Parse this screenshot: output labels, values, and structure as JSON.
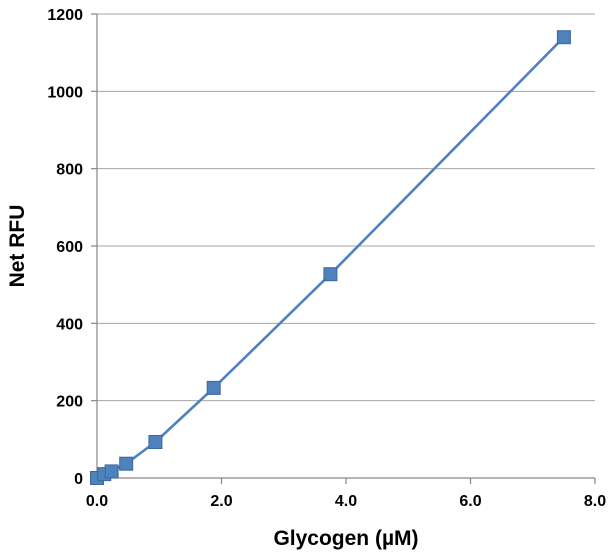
{
  "chart_data": {
    "type": "line",
    "title": "",
    "xlabel": "Glycogen (µM)",
    "ylabel": "Net RFU",
    "xlim": [
      0,
      8
    ],
    "ylim": [
      0,
      1200
    ],
    "x_ticks": [
      "0.0",
      "2.0",
      "4.0",
      "6.0",
      "8.0"
    ],
    "y_ticks": [
      "0",
      "200",
      "400",
      "600",
      "800",
      "1000",
      "1200"
    ],
    "grid": "horizontal",
    "legend": "none",
    "marker": "square",
    "color": "#4f81bd",
    "series": [
      {
        "x": [
          0,
          0.117,
          0.234,
          0.469,
          0.938,
          1.875,
          3.75,
          7.5
        ],
        "y": [
          0,
          10,
          17,
          37,
          93,
          233,
          527,
          1140
        ]
      }
    ]
  }
}
